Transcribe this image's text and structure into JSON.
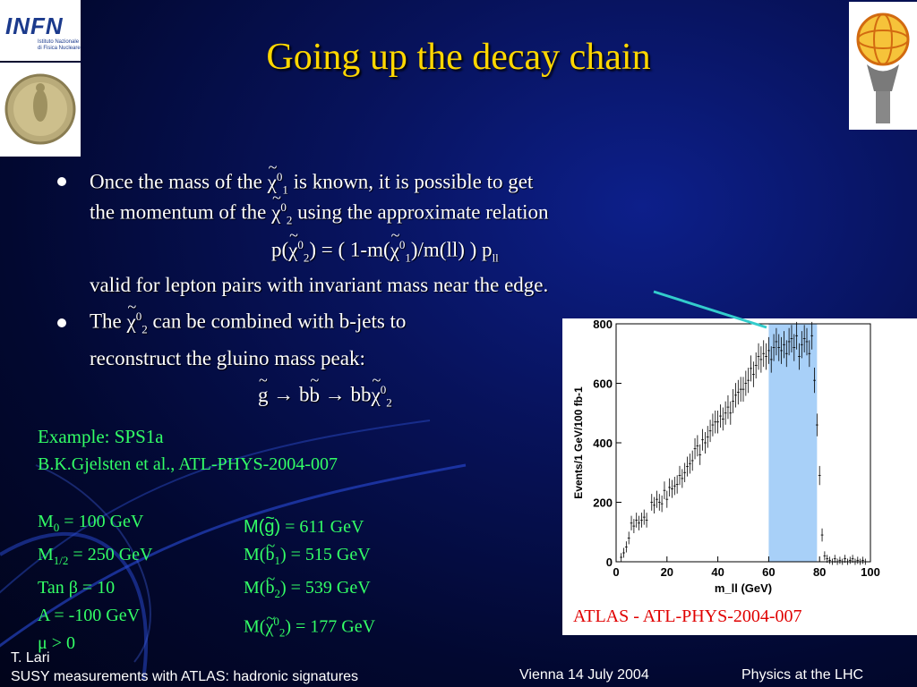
{
  "title": "Going up the decay chain",
  "logos": {
    "infn_text": "INFN",
    "infn_sub": "Istituto Nazionale\ndi Fisica Nucleare"
  },
  "bullets": {
    "b1_line1_a": "Once the mass of the ",
    "b1_line1_sym": "χ",
    "b1_line1_sup": "0",
    "b1_line1_sub": "1",
    "b1_line1_b": " is known, it is possible to get",
    "b1_line2_a": "the momentum of the ",
    "b1_line2_sym": "χ",
    "b1_line2_sup": "0",
    "b1_line2_sub": "2",
    "b1_line2_b": " using the approximate relation",
    "formula_a": "p(",
    "formula_sym1": "χ",
    "formula_sup1": "0",
    "formula_sub1": "2",
    "formula_b": ") = ( 1-m(",
    "formula_sym2": "χ",
    "formula_sup2": "0",
    "formula_sub2": "1",
    "formula_c": ")/m(ll) ) p",
    "formula_sub3": "ll",
    "b1_line3": "valid for lepton pairs with invariant mass near the edge.",
    "b2_line1_a": "The ",
    "b2_line1_sym": "χ",
    "b2_line1_sup": "0",
    "b2_line1_sub": "2",
    "b2_line1_b": " can be combined with b-jets to",
    "b2_line2": "reconstruct the gluino mass peak:",
    "chain_g": "g",
    "chain_a": " → b",
    "chain_b": "b",
    "chain_c": " → bb",
    "chain_sym": "χ",
    "chain_sup": "0",
    "chain_sub": "2"
  },
  "example": {
    "title": "Example: SPS1a",
    "ref": "B.K.Gjelsten et al., ATL-PHYS-2004-007"
  },
  "params": {
    "m0_a": "M",
    "m0_sub": "0",
    "m0_b": " = 100 GeV",
    "m12_a": "M",
    "m12_sub": "1/2",
    "m12_b": " = 250 GeV",
    "tanb": "Tan β = 10",
    "a": "A = -100 GeV",
    "mu": "μ > 0"
  },
  "masses": {
    "g_a": "M(",
    "g_sym": "g",
    "g_b": ")",
    "g_c": " = 611 GeV",
    "b1_a": "M(",
    "b1_sym": "b",
    "b1_sub": "1",
    "b1_b": ") = 515 GeV",
    "b2_a": "M(",
    "b2_sym": "b",
    "b2_sub": "2",
    "b2_b": ") = 539 GeV",
    "chi_a": "M(",
    "chi_sym": "χ",
    "chi_sup": "0",
    "chi_sub": "2",
    "chi_b": ") = 177 GeV"
  },
  "chart_data": {
    "type": "scatter",
    "xlabel": "m_ll (GeV)",
    "ylabel": "Events/1 GeV/100 fb-1",
    "xlim": [
      0,
      100
    ],
    "ylim": [
      0,
      800
    ],
    "xticks": [
      0,
      20,
      40,
      60,
      80,
      100
    ],
    "yticks": [
      0,
      200,
      400,
      600,
      800
    ],
    "highlight_band": [
      60,
      79
    ],
    "highlight_color": "#a8d0f8",
    "points": [
      [
        2,
        15
      ],
      [
        3,
        30
      ],
      [
        4,
        50
      ],
      [
        5,
        80
      ],
      [
        6,
        130
      ],
      [
        7,
        120
      ],
      [
        8,
        140
      ],
      [
        9,
        130
      ],
      [
        10,
        140
      ],
      [
        11,
        150
      ],
      [
        12,
        140
      ],
      [
        14,
        200
      ],
      [
        15,
        190
      ],
      [
        16,
        210
      ],
      [
        17,
        200
      ],
      [
        18,
        195
      ],
      [
        19,
        240
      ],
      [
        20,
        210
      ],
      [
        21,
        250
      ],
      [
        22,
        245
      ],
      [
        23,
        255
      ],
      [
        24,
        260
      ],
      [
        25,
        290
      ],
      [
        26,
        280
      ],
      [
        27,
        300
      ],
      [
        28,
        320
      ],
      [
        29,
        330
      ],
      [
        30,
        340
      ],
      [
        31,
        380
      ],
      [
        32,
        390
      ],
      [
        33,
        360
      ],
      [
        34,
        410
      ],
      [
        35,
        400
      ],
      [
        36,
        420
      ],
      [
        37,
        440
      ],
      [
        38,
        460
      ],
      [
        39,
        470
      ],
      [
        40,
        470
      ],
      [
        41,
        490
      ],
      [
        42,
        480
      ],
      [
        43,
        500
      ],
      [
        44,
        520
      ],
      [
        45,
        500
      ],
      [
        46,
        540
      ],
      [
        47,
        560
      ],
      [
        48,
        570
      ],
      [
        49,
        580
      ],
      [
        50,
        580
      ],
      [
        51,
        600
      ],
      [
        52,
        610
      ],
      [
        53,
        650
      ],
      [
        54,
        630
      ],
      [
        55,
        660
      ],
      [
        56,
        690
      ],
      [
        57,
        680
      ],
      [
        58,
        700
      ],
      [
        59,
        690
      ],
      [
        60,
        710
      ],
      [
        61,
        680
      ],
      [
        62,
        720
      ],
      [
        63,
        740
      ],
      [
        64,
        720
      ],
      [
        65,
        710
      ],
      [
        66,
        730
      ],
      [
        67,
        700
      ],
      [
        68,
        740
      ],
      [
        69,
        750
      ],
      [
        70,
        720
      ],
      [
        71,
        760
      ],
      [
        72,
        690
      ],
      [
        73,
        730
      ],
      [
        74,
        750
      ],
      [
        75,
        740
      ],
      [
        76,
        700
      ],
      [
        77,
        760
      ],
      [
        78,
        610
      ],
      [
        79,
        460
      ],
      [
        80,
        290
      ],
      [
        81,
        90
      ],
      [
        82,
        20
      ],
      [
        83,
        10
      ],
      [
        84,
        5
      ],
      [
        85,
        0
      ],
      [
        86,
        10
      ],
      [
        87,
        0
      ],
      [
        88,
        5
      ],
      [
        89,
        0
      ],
      [
        90,
        10
      ],
      [
        91,
        0
      ],
      [
        92,
        5
      ],
      [
        93,
        10
      ],
      [
        94,
        0
      ],
      [
        95,
        5
      ],
      [
        96,
        0
      ],
      [
        97,
        5
      ],
      [
        98,
        0
      ]
    ]
  },
  "caption": "ATLAS - ATL-PHYS-2004-007",
  "footer": {
    "author": "T. Lari",
    "talk": "SUSY measurements with ATLAS: hadronic signatures",
    "venue": "Vienna 14 July 2004",
    "conf": "Physics at  the LHC"
  },
  "colors": {
    "title": "#ffd700",
    "green_text": "#33ff66",
    "caption": "#e00000",
    "arrow": "#33cccc"
  },
  "icons": [
    "infn-logo",
    "medal-logo",
    "atlas-logo"
  ]
}
